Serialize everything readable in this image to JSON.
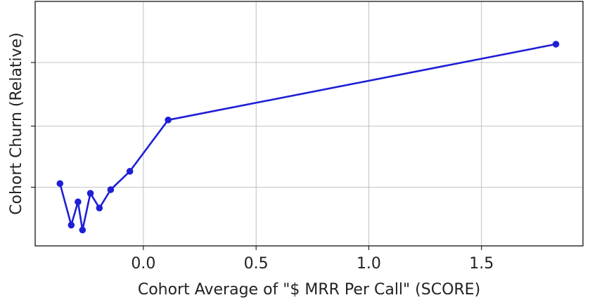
{
  "chart_data": {
    "type": "line",
    "title": "",
    "xlabel": "Cohort Average of  \"$ MRR Per Call\" (SCORE)",
    "ylabel": "Cohort Churn (Relative)",
    "xlim": [
      -0.48,
      1.95
    ],
    "ylim": [
      0,
      1
    ],
    "grid": true,
    "legend": "none",
    "x_ticks": [
      {
        "value": 0.0,
        "label": "0.0"
      },
      {
        "value": 0.5,
        "label": "0.5"
      },
      {
        "value": 1.0,
        "label": "1.0"
      },
      {
        "value": 1.5,
        "label": "1.5"
      }
    ],
    "y_ticks": [
      0.24,
      0.49,
      0.75
    ],
    "y_ticks_labeled": false,
    "series": [
      {
        "color": "#1f1fd6",
        "x": [
          -0.37,
          -0.32,
          -0.29,
          -0.27,
          -0.235,
          -0.195,
          -0.145,
          -0.06,
          0.11,
          1.83
        ],
        "y": [
          0.255,
          0.085,
          0.18,
          0.065,
          0.215,
          0.155,
          0.23,
          0.305,
          0.515,
          0.825
        ]
      }
    ]
  }
}
